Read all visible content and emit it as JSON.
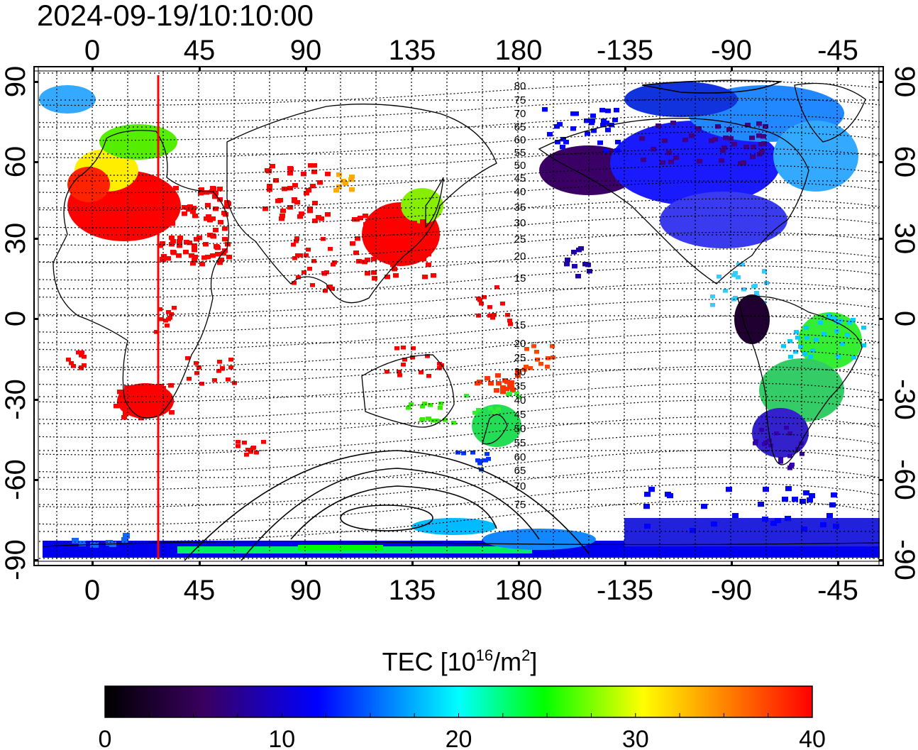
{
  "timestamp": "2024-09-19/10:10:00",
  "longitude_labels_top": [
    "0",
    "45",
    "90",
    "135",
    "180",
    "-135",
    "-90",
    "-45"
  ],
  "longitude_labels_bottom": [
    "0",
    "45",
    "90",
    "135",
    "180",
    "-135",
    "-90",
    "-45"
  ],
  "latitude_labels": [
    "90",
    "60",
    "30",
    "0",
    "-30",
    "-60",
    "-90"
  ],
  "magnetic_lat_labels_north": [
    "80",
    "75",
    "70",
    "65",
    "60",
    "55",
    "50",
    "45",
    "40",
    "35",
    "30",
    "25",
    "20",
    "15"
  ],
  "magnetic_lat_labels_south": [
    "15",
    "20",
    "25",
    "30",
    "35",
    "40",
    "45",
    "50",
    "55",
    "60",
    "65",
    "70",
    "75"
  ],
  "colorbar": {
    "title_prefix": "TEC  [10",
    "title_exp": "16",
    "title_mid": "/m",
    "title_exp2": "2",
    "title_suffix": "]",
    "tick_labels": [
      "0",
      "10",
      "20",
      "30",
      "40"
    ],
    "stops": [
      "#000000",
      "#3a0060",
      "#0000ff",
      "#00ffff",
      "#00ff00",
      "#ffff00",
      "#ff8000",
      "#ff0000"
    ]
  },
  "colors": {
    "terminator": "#ff0000",
    "frame": "#000000"
  }
}
